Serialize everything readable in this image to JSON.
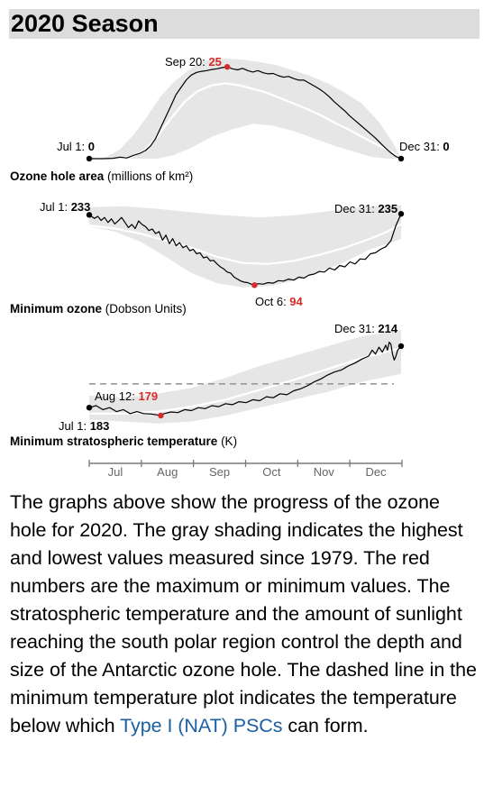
{
  "header": {
    "title": "2020 Season"
  },
  "colors": {
    "band": "#e6e6e6",
    "mean": "#ffffff",
    "series": "#000000",
    "highlight": "#d62a2a",
    "threshold": "#9a9a9a",
    "link": "#1a5fa4"
  },
  "chart_data": [
    {
      "type": "line",
      "name_bold": "Ozone hole area",
      "name_unit": " (millions of km²)",
      "xlim": [
        "Jul 1",
        "Dec 31"
      ],
      "ylim": [
        0,
        28
      ],
      "start": {
        "label": "Jul 1: ",
        "value": "0"
      },
      "end": {
        "label": "Dec 31: ",
        "value": "0"
      },
      "extreme": {
        "label": "Sep 20: ",
        "value": "25",
        "day": 81,
        "y": 25
      },
      "series": [
        [
          0,
          0
        ],
        [
          8,
          0
        ],
        [
          14,
          0.1
        ],
        [
          18,
          0.4
        ],
        [
          22,
          0.2
        ],
        [
          26,
          0.9
        ],
        [
          30,
          1.5
        ],
        [
          33,
          2.2
        ],
        [
          36,
          3.5
        ],
        [
          39,
          5.5
        ],
        [
          42,
          8.5
        ],
        [
          45,
          11.5
        ],
        [
          48,
          14.5
        ],
        [
          51,
          17.5
        ],
        [
          54,
          19.5
        ],
        [
          57,
          21.5
        ],
        [
          60,
          22.8
        ],
        [
          63,
          23.5
        ],
        [
          66,
          23.8
        ],
        [
          69,
          24
        ],
        [
          72,
          24.3
        ],
        [
          75,
          24.5
        ],
        [
          78,
          24.8
        ],
        [
          81,
          25
        ],
        [
          84,
          24.5
        ],
        [
          87,
          24.2
        ],
        [
          90,
          24.6
        ],
        [
          93,
          24
        ],
        [
          96,
          23.6
        ],
        [
          99,
          24
        ],
        [
          102,
          23.4
        ],
        [
          105,
          23.1
        ],
        [
          108,
          23.2
        ],
        [
          111,
          22.6
        ],
        [
          114,
          22.2
        ],
        [
          117,
          22.4
        ],
        [
          120,
          21.8
        ],
        [
          123,
          21.4
        ],
        [
          126,
          21.4
        ],
        [
          129,
          20.6
        ],
        [
          132,
          19.8
        ],
        [
          135,
          19
        ],
        [
          138,
          18
        ],
        [
          141,
          16.8
        ],
        [
          144,
          15.4
        ],
        [
          147,
          14.2
        ],
        [
          150,
          13
        ],
        [
          153,
          11.6
        ],
        [
          156,
          10.4
        ],
        [
          159,
          9.2
        ],
        [
          162,
          8
        ],
        [
          165,
          6.8
        ],
        [
          168,
          5.6
        ],
        [
          171,
          4.2
        ],
        [
          174,
          2.8
        ],
        [
          177,
          1.6
        ],
        [
          180,
          0.6
        ],
        [
          183,
          0
        ]
      ],
      "mean": [
        [
          0,
          0
        ],
        [
          15,
          0
        ],
        [
          24,
          0.5
        ],
        [
          32,
          2
        ],
        [
          40,
          6
        ],
        [
          48,
          11
        ],
        [
          56,
          15.5
        ],
        [
          64,
          18.5
        ],
        [
          72,
          20
        ],
        [
          80,
          20.5
        ],
        [
          88,
          20
        ],
        [
          96,
          19
        ],
        [
          104,
          18
        ],
        [
          112,
          16.5
        ],
        [
          120,
          15
        ],
        [
          128,
          13.5
        ],
        [
          136,
          11.8
        ],
        [
          144,
          9.8
        ],
        [
          152,
          8
        ],
        [
          160,
          6
        ],
        [
          168,
          4
        ],
        [
          176,
          2.2
        ],
        [
          183,
          0
        ]
      ],
      "band_upper": [
        [
          0,
          0
        ],
        [
          10,
          0.5
        ],
        [
          18,
          2.5
        ],
        [
          26,
          6.5
        ],
        [
          34,
          11.5
        ],
        [
          42,
          17
        ],
        [
          50,
          21
        ],
        [
          58,
          24
        ],
        [
          66,
          26.5
        ],
        [
          74,
          27.2
        ],
        [
          82,
          27.2
        ],
        [
          90,
          27
        ],
        [
          100,
          26.3
        ],
        [
          110,
          25.5
        ],
        [
          120,
          24
        ],
        [
          130,
          22.5
        ],
        [
          140,
          20.5
        ],
        [
          150,
          18
        ],
        [
          160,
          15
        ],
        [
          170,
          10
        ],
        [
          178,
          4.5
        ],
        [
          183,
          0
        ]
      ],
      "band_lower": [
        [
          0,
          0
        ],
        [
          40,
          0
        ],
        [
          50,
          1
        ],
        [
          60,
          3
        ],
        [
          72,
          6
        ],
        [
          84,
          8
        ],
        [
          96,
          9.5
        ],
        [
          108,
          9
        ],
        [
          120,
          7.5
        ],
        [
          132,
          5.5
        ],
        [
          144,
          3.5
        ],
        [
          156,
          1.8
        ],
        [
          166,
          0.5
        ],
        [
          175,
          0
        ],
        [
          183,
          0
        ]
      ]
    },
    {
      "type": "line",
      "name_bold": "Minimum ozone",
      "name_unit": " (Dobson Units)",
      "xlim": [
        "Jul 1",
        "Dec 31"
      ],
      "ylim": [
        75,
        255
      ],
      "start": {
        "label": "Jul 1: ",
        "value": "233"
      },
      "end": {
        "label": "Dec 31: ",
        "value": "235"
      },
      "extreme": {
        "label": "Oct 6: ",
        "value": "94",
        "day": 97,
        "y": 94
      },
      "series": [
        [
          0,
          233
        ],
        [
          3,
          226
        ],
        [
          5,
          230
        ],
        [
          7,
          222
        ],
        [
          9,
          228
        ],
        [
          11,
          218
        ],
        [
          13,
          225
        ],
        [
          15,
          215
        ],
        [
          17,
          221
        ],
        [
          19,
          228
        ],
        [
          21,
          218
        ],
        [
          23,
          208
        ],
        [
          25,
          214
        ],
        [
          27,
          206
        ],
        [
          29,
          221
        ],
        [
          31,
          214
        ],
        [
          33,
          210
        ],
        [
          35,
          202
        ],
        [
          37,
          205
        ],
        [
          39,
          196
        ],
        [
          41,
          200
        ],
        [
          43,
          183
        ],
        [
          45,
          193
        ],
        [
          47,
          176
        ],
        [
          49,
          186
        ],
        [
          51,
          172
        ],
        [
          53,
          178
        ],
        [
          55,
          168
        ],
        [
          57,
          172
        ],
        [
          59,
          162
        ],
        [
          61,
          165
        ],
        [
          63,
          156
        ],
        [
          65,
          158
        ],
        [
          67,
          148
        ],
        [
          69,
          150
        ],
        [
          71,
          142
        ],
        [
          73,
          143
        ],
        [
          75,
          136
        ],
        [
          77,
          130
        ],
        [
          79,
          126
        ],
        [
          81,
          120
        ],
        [
          83,
          118
        ],
        [
          85,
          110
        ],
        [
          87,
          106
        ],
        [
          89,
          102
        ],
        [
          91,
          100
        ],
        [
          93,
          99
        ],
        [
          95,
          96
        ],
        [
          97,
          94
        ],
        [
          99,
          97
        ],
        [
          102,
          96
        ],
        [
          105,
          99
        ],
        [
          108,
          98
        ],
        [
          111,
          103
        ],
        [
          114,
          102
        ],
        [
          117,
          106
        ],
        [
          120,
          104
        ],
        [
          123,
          110
        ],
        [
          126,
          108
        ],
        [
          129,
          114
        ],
        [
          132,
          116
        ],
        [
          135,
          121
        ],
        [
          138,
          120
        ],
        [
          141,
          128
        ],
        [
          144,
          124
        ],
        [
          147,
          133
        ],
        [
          150,
          130
        ],
        [
          153,
          140
        ],
        [
          156,
          136
        ],
        [
          159,
          146
        ],
        [
          162,
          145
        ],
        [
          165,
          156
        ],
        [
          168,
          158
        ],
        [
          171,
          165
        ],
        [
          174,
          170
        ],
        [
          177,
          182
        ],
        [
          180,
          212
        ],
        [
          183,
          235
        ]
      ],
      "mean": [
        [
          0,
          212
        ],
        [
          15,
          206
        ],
        [
          30,
          196
        ],
        [
          45,
          182
        ],
        [
          60,
          168
        ],
        [
          75,
          150
        ],
        [
          90,
          138
        ],
        [
          105,
          136
        ],
        [
          120,
          142
        ],
        [
          135,
          154
        ],
        [
          150,
          168
        ],
        [
          165,
          186
        ],
        [
          175,
          200
        ],
        [
          183,
          215
        ]
      ],
      "band_upper": [
        [
          0,
          248
        ],
        [
          20,
          250
        ],
        [
          40,
          245
        ],
        [
          60,
          238
        ],
        [
          80,
          232
        ],
        [
          100,
          228
        ],
        [
          120,
          232
        ],
        [
          140,
          240
        ],
        [
          160,
          248
        ],
        [
          183,
          252
        ]
      ],
      "band_lower": [
        [
          0,
          210
        ],
        [
          15,
          200
        ],
        [
          30,
          180
        ],
        [
          45,
          150
        ],
        [
          60,
          118
        ],
        [
          75,
          98
        ],
        [
          90,
          90
        ],
        [
          105,
          92
        ],
        [
          120,
          102
        ],
        [
          135,
          120
        ],
        [
          150,
          140
        ],
        [
          165,
          165
        ],
        [
          183,
          185
        ]
      ]
    },
    {
      "type": "line",
      "name_bold": "Minimum stratospheric temperature",
      "name_unit": " (K)",
      "xlim": [
        "Jul 1",
        "Dec 31"
      ],
      "ylim": [
        174,
        224
      ],
      "threshold": 195,
      "start": {
        "label": "Jul 1: ",
        "value": "183"
      },
      "end": {
        "label": "Dec 31: ",
        "value": "214"
      },
      "extreme": {
        "label": "Aug 12: ",
        "value": "179",
        "day": 42,
        "y": 179
      },
      "series": [
        [
          0,
          183
        ],
        [
          4,
          184
        ],
        [
          8,
          182
        ],
        [
          12,
          183
        ],
        [
          16,
          181
        ],
        [
          20,
          182
        ],
        [
          24,
          180
        ],
        [
          28,
          181
        ],
        [
          32,
          180
        ],
        [
          36,
          179.8
        ],
        [
          40,
          179.3
        ],
        [
          42,
          179
        ],
        [
          44,
          180
        ],
        [
          48,
          180.8
        ],
        [
          52,
          180.5
        ],
        [
          56,
          182
        ],
        [
          60,
          181.5
        ],
        [
          64,
          183
        ],
        [
          68,
          182.5
        ],
        [
          72,
          184
        ],
        [
          76,
          183.5
        ],
        [
          80,
          185
        ],
        [
          84,
          184.5
        ],
        [
          88,
          186
        ],
        [
          92,
          185.5
        ],
        [
          96,
          187
        ],
        [
          100,
          186.5
        ],
        [
          104,
          188.5
        ],
        [
          108,
          188
        ],
        [
          112,
          190
        ],
        [
          116,
          189.5
        ],
        [
          120,
          191.5
        ],
        [
          124,
          192.5
        ],
        [
          128,
          194
        ],
        [
          132,
          196
        ],
        [
          136,
          197.5
        ],
        [
          140,
          199.5
        ],
        [
          144,
          201
        ],
        [
          148,
          202
        ],
        [
          152,
          204
        ],
        [
          156,
          205.5
        ],
        [
          160,
          207.5
        ],
        [
          164,
          209
        ],
        [
          166,
          212
        ],
        [
          168,
          210
        ],
        [
          170,
          213.5
        ],
        [
          172,
          211
        ],
        [
          174,
          214.5
        ],
        [
          175,
          212
        ],
        [
          176,
          216
        ],
        [
          177,
          215
        ],
        [
          178,
          210
        ],
        [
          179,
          207
        ],
        [
          180,
          209
        ],
        [
          181,
          212
        ],
        [
          183,
          214
        ]
      ],
      "mean": [
        [
          0,
          180
        ],
        [
          20,
          180
        ],
        [
          40,
          181
        ],
        [
          60,
          183.5
        ],
        [
          80,
          187
        ],
        [
          100,
          192
        ],
        [
          120,
          197
        ],
        [
          140,
          202.5
        ],
        [
          160,
          208
        ],
        [
          183,
          213
        ]
      ],
      "band_upper": [
        [
          0,
          189
        ],
        [
          20,
          188
        ],
        [
          40,
          190
        ],
        [
          60,
          193
        ],
        [
          80,
          198
        ],
        [
          100,
          204
        ],
        [
          120,
          209
        ],
        [
          140,
          214
        ],
        [
          160,
          219
        ],
        [
          183,
          222
        ]
      ],
      "band_lower": [
        [
          0,
          177
        ],
        [
          20,
          176
        ],
        [
          40,
          175
        ],
        [
          60,
          176
        ],
        [
          80,
          179
        ],
        [
          100,
          183
        ],
        [
          120,
          187
        ],
        [
          140,
          191
        ],
        [
          160,
          196
        ],
        [
          183,
          200
        ]
      ]
    }
  ],
  "x_axis": {
    "months": [
      "Jul",
      "Aug",
      "Sep",
      "Oct",
      "Nov",
      "Dec"
    ]
  },
  "description": {
    "text": "The graphs above show the progress of the ozone hole for 2020. The gray shading indicates the highest and lowest values measured since 1979. The red numbers are the maximum or minimum values. The stratospheric temperature and the amount of sunlight reaching the south polar region control the depth and size of the Antarctic ozone hole. The dashed line in the minimum temperature plot indicates the temperature below which ",
    "link_text": "Type I (NAT) PSCs",
    "tail_text": " can form."
  }
}
